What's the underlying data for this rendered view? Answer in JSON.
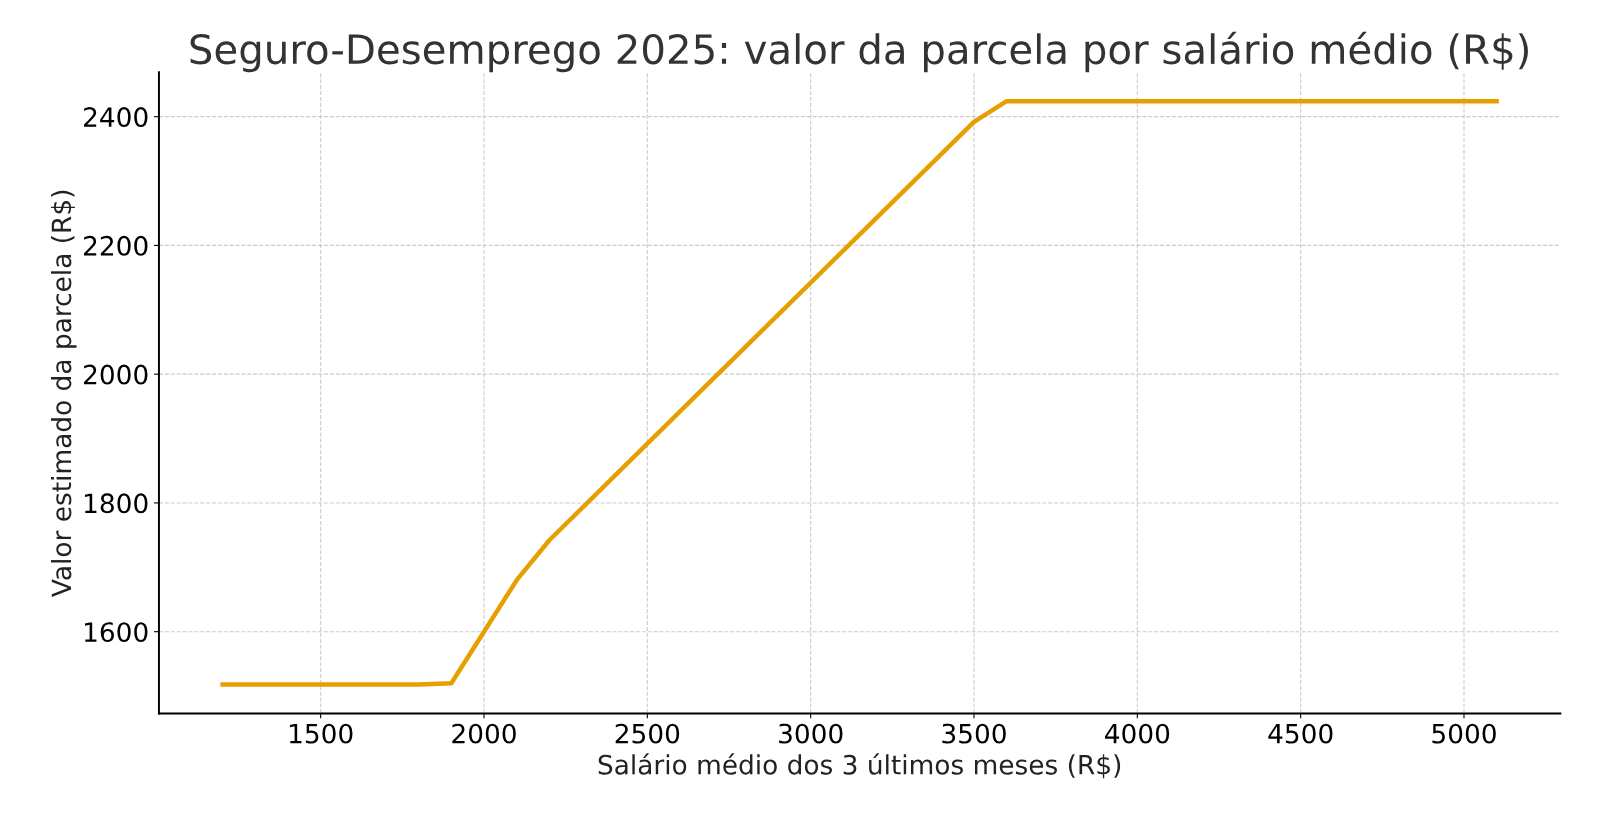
{
  "chart_data": {
    "type": "line",
    "title": "Seguro-Desemprego 2025: valor da parcela por salário médio (R$)",
    "xlabel": "Salário médio dos 3 últimos meses (R$)",
    "ylabel": "Valor estimado da parcela (R$)",
    "x": [
      1200,
      1800,
      1900,
      2000,
      2100,
      2200,
      3500,
      3600,
      5100
    ],
    "series": [
      {
        "color": "#e69f00",
        "values": [
          1518,
          1518,
          1520,
          1600,
          1680,
          1742,
          2392,
          2424,
          2424
        ]
      }
    ],
    "xlim": [
      1005,
      5295
    ],
    "ylim": [
      1473,
      2469
    ],
    "xticks": [
      1500,
      2000,
      2500,
      3000,
      3500,
      4000,
      4500,
      5000
    ],
    "yticks": [
      1600,
      1800,
      2000,
      2200,
      2400
    ],
    "grid": true,
    "line_style": "solid",
    "marker": "none"
  }
}
